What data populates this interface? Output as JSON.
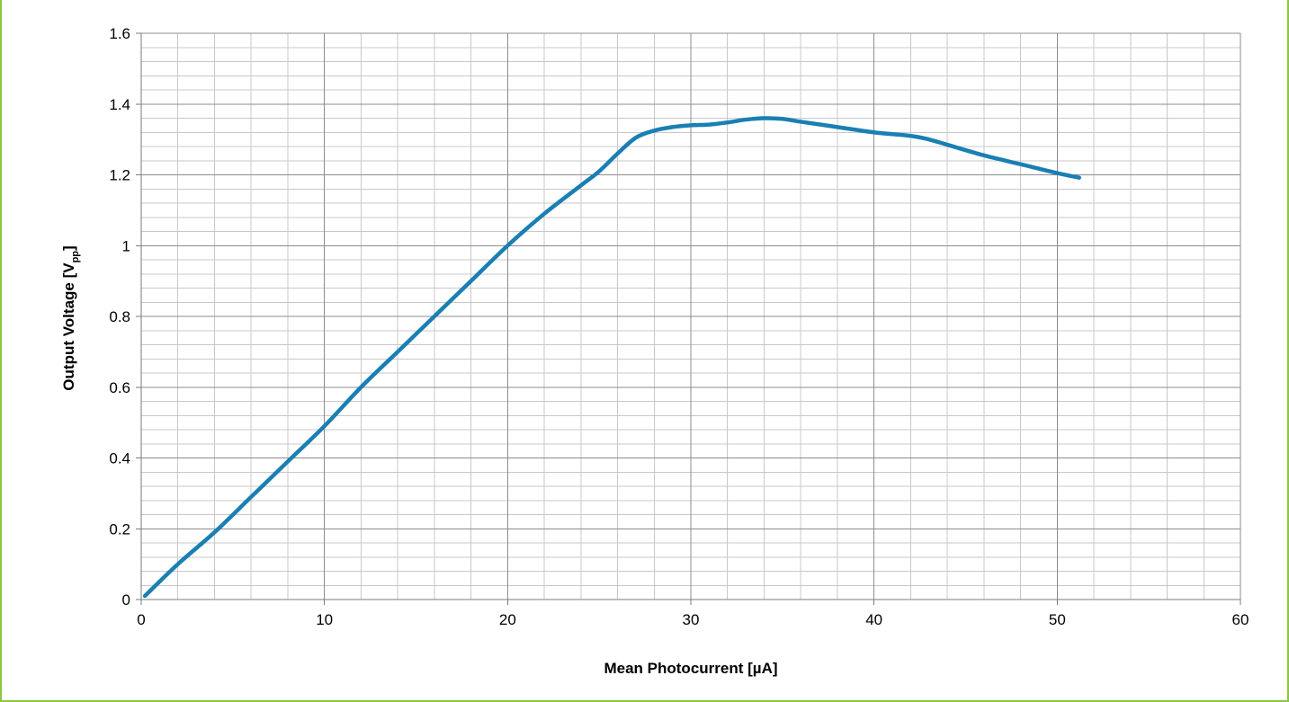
{
  "chart_data": {
    "type": "line",
    "title": "",
    "xlabel": "Mean Photocurrent [µA]",
    "ylabel": {
      "main": "Output Voltage [V",
      "sub": "pp",
      "end": "]"
    },
    "xlim": [
      0,
      60
    ],
    "ylim": [
      0,
      1.6
    ],
    "x_ticks": [
      "0",
      "10",
      "20",
      "30",
      "40",
      "50",
      "60"
    ],
    "y_ticks": [
      "0",
      "0.2",
      "0.4",
      "0.6",
      "0.8",
      "1",
      "1.2",
      "1.4",
      "1.6"
    ],
    "grid": true,
    "legend": "none",
    "series": [
      {
        "color": "#1a7fb3",
        "x": [
          0.2,
          2,
          4,
          6,
          8,
          10,
          12,
          14,
          16,
          18,
          20,
          22,
          24,
          25,
          26,
          27,
          28,
          29,
          30,
          31,
          32,
          33,
          34,
          35,
          36,
          38,
          40,
          42,
          43,
          44,
          46,
          48,
          50,
          51.2
        ],
        "y": [
          0.01,
          0.1,
          0.19,
          0.29,
          0.39,
          0.49,
          0.6,
          0.7,
          0.8,
          0.9,
          1.0,
          1.09,
          1.17,
          1.21,
          1.26,
          1.305,
          1.325,
          1.335,
          1.34,
          1.342,
          1.348,
          1.356,
          1.36,
          1.358,
          1.35,
          1.335,
          1.32,
          1.31,
          1.3,
          1.285,
          1.255,
          1.23,
          1.205,
          1.192
        ]
      }
    ]
  }
}
